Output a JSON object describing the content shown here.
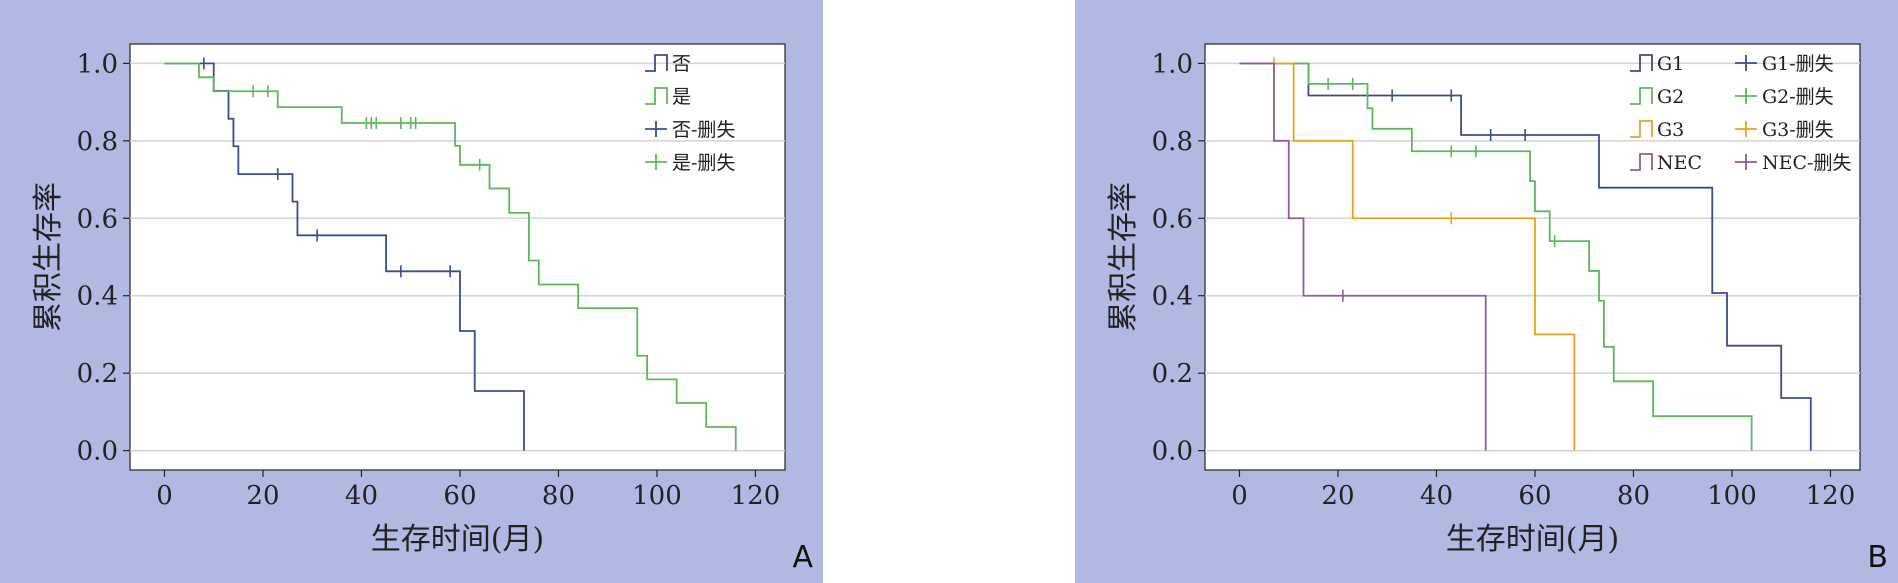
{
  "panels": [
    {
      "letter": "A"
    },
    {
      "letter": "B"
    }
  ],
  "chart_data": [
    {
      "type": "line",
      "panel": "A",
      "xlabel": "生存时间(月)",
      "ylabel": "累积生存率",
      "xlim": [
        -7,
        126
      ],
      "ylim": [
        -0.05,
        1.05
      ],
      "xticks": [
        0,
        20,
        40,
        60,
        80,
        100,
        120
      ],
      "yticks": [
        0.0,
        0.2,
        0.4,
        0.6,
        0.8,
        1.0
      ],
      "ytick_labels": [
        "0.0",
        "0.2",
        "0.4",
        "0.6",
        "0.8",
        "1.0"
      ],
      "grid": true,
      "legend_position": "top-right",
      "legend": [
        {
          "label": "否",
          "kind": "step",
          "color": "#3c4b8f"
        },
        {
          "label": "是",
          "kind": "step",
          "color": "#5cb85c"
        },
        {
          "label": "否-删失",
          "kind": "censor",
          "color": "#3c4b8f"
        },
        {
          "label": "是-删失",
          "kind": "censor",
          "color": "#5cb85c"
        }
      ],
      "series": [
        {
          "name": "否",
          "color": "#3c4b8f",
          "x": [
            0,
            10,
            13,
            14,
            15,
            26,
            27,
            45,
            60,
            63,
            73
          ],
          "y": [
            1.0,
            0.929,
            0.857,
            0.786,
            0.714,
            0.643,
            0.556,
            0.463,
            0.309,
            0.154,
            0.0
          ],
          "censored": [
            [
              8,
              1.0
            ],
            [
              23,
              0.714
            ],
            [
              31,
              0.556
            ],
            [
              48,
              0.463
            ],
            [
              58,
              0.463
            ]
          ]
        },
        {
          "name": "是",
          "color": "#5cb85c",
          "x": [
            0,
            7,
            10,
            23,
            36,
            59,
            60,
            66,
            70,
            74,
            76,
            84,
            96,
            98,
            104,
            110,
            116
          ],
          "y": [
            1.0,
            0.964,
            0.928,
            0.887,
            0.846,
            0.787,
            0.738,
            0.677,
            0.614,
            0.491,
            0.429,
            0.368,
            0.245,
            0.184,
            0.123,
            0.061,
            0.0
          ],
          "censored": [
            [
              18,
              0.928
            ],
            [
              21,
              0.928
            ],
            [
              41,
              0.846
            ],
            [
              42,
              0.846
            ],
            [
              43,
              0.846
            ],
            [
              48,
              0.846
            ],
            [
              50,
              0.846
            ],
            [
              51,
              0.846
            ],
            [
              64,
              0.738
            ]
          ]
        }
      ]
    },
    {
      "type": "line",
      "panel": "B",
      "xlabel": "生存时间(月)",
      "ylabel": "累积生存率",
      "xlim": [
        -7,
        126
      ],
      "ylim": [
        -0.05,
        1.05
      ],
      "xticks": [
        0,
        20,
        40,
        60,
        80,
        100,
        120
      ],
      "yticks": [
        0.0,
        0.2,
        0.4,
        0.6,
        0.8,
        1.0
      ],
      "ytick_labels": [
        "0.0",
        "0.2",
        "0.4",
        "0.6",
        "0.8",
        "1.0"
      ],
      "grid": true,
      "legend_position": "top-right",
      "legend": [
        {
          "label": "G1",
          "kind": "step",
          "color": "#3c4b8f"
        },
        {
          "label": "G1-删失",
          "kind": "censor",
          "color": "#3c4b8f"
        },
        {
          "label": "G2",
          "kind": "step",
          "color": "#5cb85c"
        },
        {
          "label": "G2-删失",
          "kind": "censor",
          "color": "#5cb85c"
        },
        {
          "label": "G3",
          "kind": "step",
          "color": "#e8a21c"
        },
        {
          "label": "G3-删失",
          "kind": "censor",
          "color": "#e8a21c"
        },
        {
          "label": "NEC",
          "kind": "step",
          "color": "#8e5aa3"
        },
        {
          "label": "NEC-删失",
          "kind": "censor",
          "color": "#8e5aa3"
        }
      ],
      "series": [
        {
          "name": "G1",
          "color": "#3c4b8f",
          "x": [
            0,
            14,
            45,
            73,
            96,
            99,
            110,
            116
          ],
          "y": [
            1.0,
            0.917,
            0.815,
            0.679,
            0.407,
            0.271,
            0.136,
            0.0
          ],
          "censored": [
            [
              31,
              0.917
            ],
            [
              43,
              0.917
            ],
            [
              51,
              0.815
            ],
            [
              58,
              0.815
            ]
          ]
        },
        {
          "name": "G2",
          "color": "#5cb85c",
          "x": [
            0,
            14,
            26,
            27,
            35,
            59,
            60,
            63,
            71,
            73,
            74,
            76,
            84,
            104
          ],
          "y": [
            1.0,
            0.947,
            0.884,
            0.831,
            0.773,
            0.696,
            0.618,
            0.541,
            0.464,
            0.387,
            0.268,
            0.179,
            0.089,
            0.0
          ],
          "censored": [
            [
              18,
              0.947
            ],
            [
              23,
              0.947
            ],
            [
              43,
              0.773
            ],
            [
              48,
              0.773
            ],
            [
              64,
              0.541
            ]
          ]
        },
        {
          "name": "G3",
          "color": "#e8a21c",
          "x": [
            0,
            11,
            23,
            60,
            68
          ],
          "y": [
            1.0,
            0.8,
            0.6,
            0.3,
            0.0
          ],
          "censored": [
            [
              7,
              1.0
            ],
            [
              43,
              0.6
            ]
          ]
        },
        {
          "name": "NEC",
          "color": "#8e5aa3",
          "x": [
            0,
            7,
            10,
            13,
            50
          ],
          "y": [
            1.0,
            0.8,
            0.6,
            0.4,
            0.0
          ],
          "censored": [
            [
              21,
              0.4
            ]
          ]
        }
      ]
    }
  ]
}
